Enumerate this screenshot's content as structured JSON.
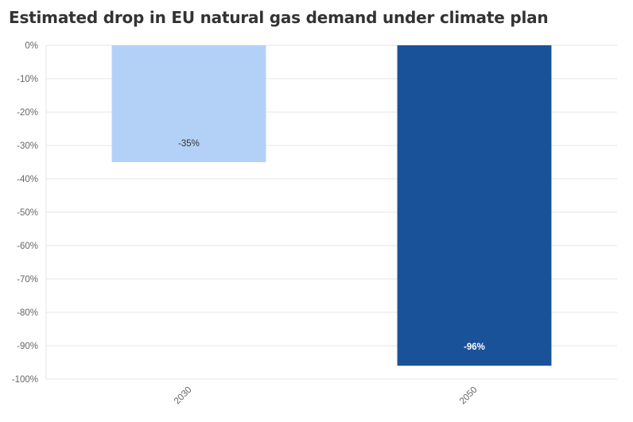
{
  "chart_data": {
    "type": "bar",
    "title": "Estimated drop in EU natural gas demand under climate plan",
    "xlabel": "",
    "ylabel": "",
    "categories": [
      "2030",
      "2050"
    ],
    "values": [
      -35,
      -96
    ],
    "data_labels": [
      "-35%",
      "-96%"
    ],
    "bar_colors": [
      "#b3d1f7",
      "#1a5299"
    ],
    "label_colors": [
      "#333333",
      "#ffffff"
    ],
    "ylim": [
      -100,
      0
    ],
    "y_ticks": [
      0,
      -10,
      -20,
      -30,
      -40,
      -50,
      -60,
      -70,
      -80,
      -90,
      -100
    ],
    "y_tick_labels": [
      "0%",
      "-10%",
      "-20%",
      "-30%",
      "-40%",
      "-50%",
      "-60%",
      "-70%",
      "-80%",
      "-90%",
      "-100%"
    ],
    "grid": true,
    "legend": "none"
  }
}
